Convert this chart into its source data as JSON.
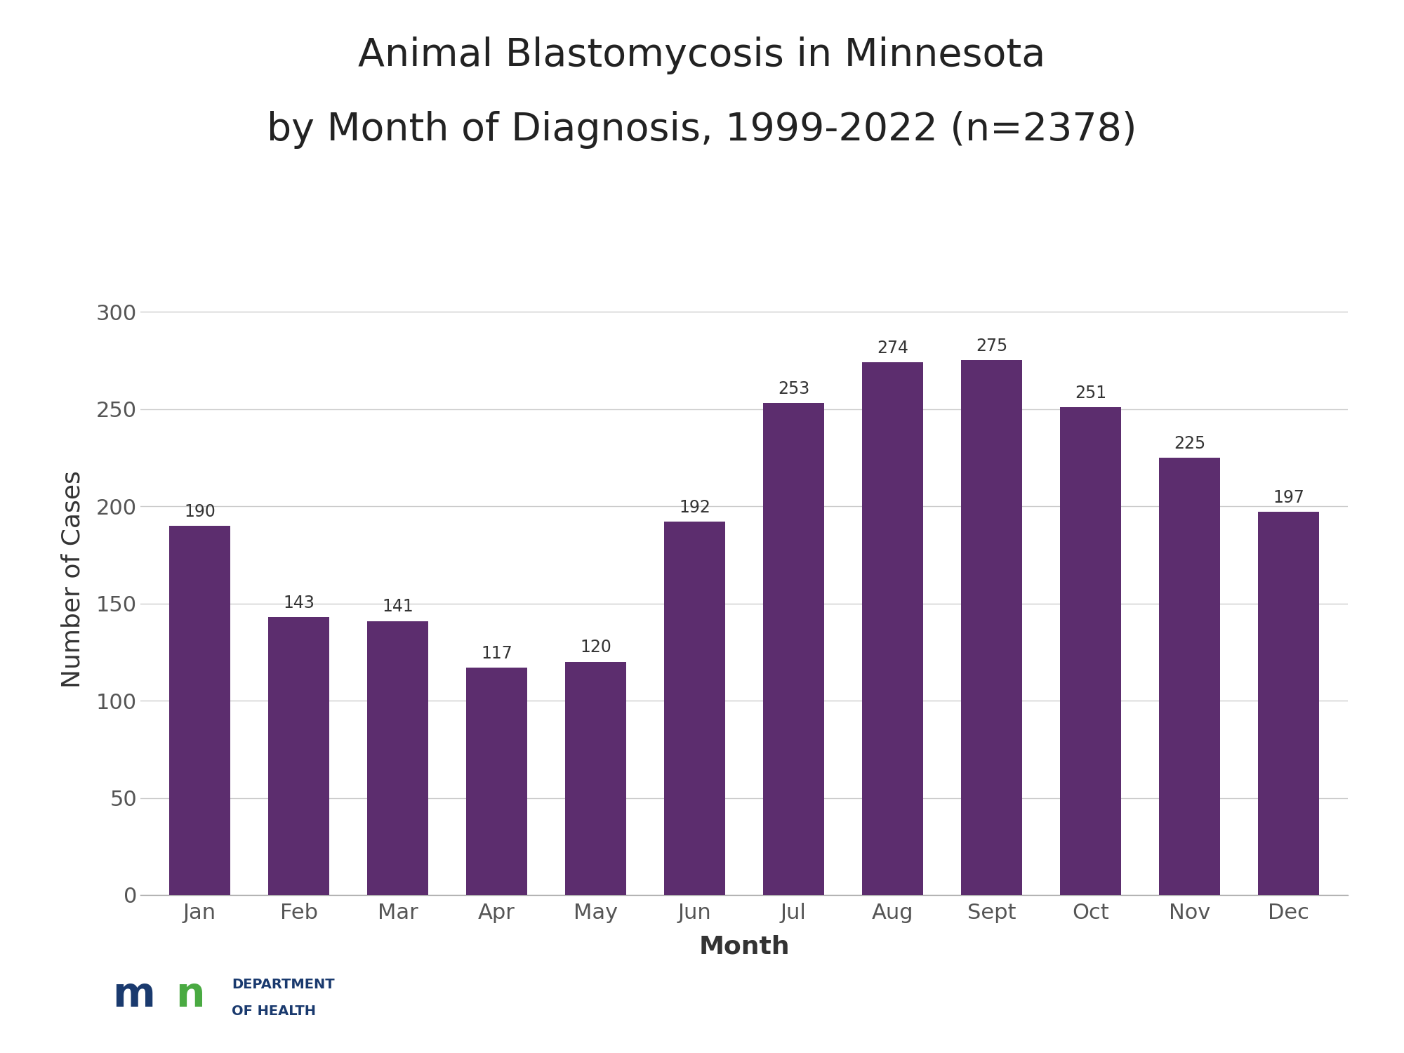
{
  "title_line1": "Animal Blastomycosis in Minnesota",
  "title_line2": "by Month of Diagnosis, 1999-2022 (n=2378)",
  "categories": [
    "Jan",
    "Feb",
    "Mar",
    "Apr",
    "May",
    "Jun",
    "Jul",
    "Aug",
    "Sept",
    "Oct",
    "Nov",
    "Dec"
  ],
  "values": [
    190,
    143,
    141,
    117,
    120,
    192,
    253,
    274,
    275,
    251,
    225,
    197
  ],
  "bar_color": "#5c2d6e",
  "background_color": "#ffffff",
  "ylabel": "Number of Cases",
  "xlabel": "Month",
  "ylim": [
    0,
    325
  ],
  "yticks": [
    0,
    50,
    100,
    150,
    200,
    250,
    300
  ],
  "title_fontsize": 40,
  "axis_label_fontsize": 26,
  "tick_fontsize": 22,
  "value_label_fontsize": 17,
  "grid_color": "#cccccc",
  "tick_color": "#555555",
  "xlabel_fontweight": "bold",
  "logo_m_color": "#1a3a6e",
  "logo_n_color": "#4aaa42",
  "logo_text_color": "#1a3a6e"
}
